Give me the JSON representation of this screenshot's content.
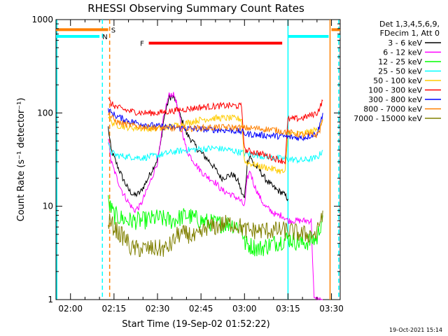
{
  "chart_data": {
    "type": "line",
    "title": "RHESSI Observing Summary Count Rates",
    "xlabel": "Start Time (19-Sep-02 01:52:22)",
    "ylabel": "Count Rate (s⁻¹ detector⁻¹)",
    "y_scale": "log",
    "ylim": [
      1,
      1000
    ],
    "xlim_minutes": [
      115,
      213
    ],
    "x_ticks": [
      {
        "label": "02:00",
        "value": 120
      },
      {
        "label": "02:15",
        "value": 135
      },
      {
        "label": "02:30",
        "value": 150
      },
      {
        "label": "02:45",
        "value": 165
      },
      {
        "label": "03:00",
        "value": 180
      },
      {
        "label": "03:15",
        "value": 195
      },
      {
        "label": "03:30",
        "value": 210
      }
    ],
    "y_ticks": [
      {
        "label": "1",
        "value": 1
      },
      {
        "label": "10",
        "value": 10
      },
      {
        "label": "100",
        "value": 100
      },
      {
        "label": "1000",
        "value": 1000
      }
    ],
    "legend": {
      "position": "right",
      "header_lines": [
        "Det 1,3,4,5,6,9,",
        "FDecim 1, Att 0"
      ]
    },
    "series": [
      {
        "name": "3 - 6 keV",
        "color": "#000000",
        "x": [
          133,
          134,
          136,
          138,
          140,
          142,
          144,
          146,
          148,
          150,
          151,
          152,
          153,
          154,
          155,
          156,
          157,
          158,
          159,
          160,
          162,
          164,
          166,
          168,
          170,
          172,
          174,
          176,
          178,
          179,
          180,
          181,
          182,
          183,
          185,
          187,
          189,
          191,
          193,
          194,
          195
        ],
        "y": [
          70,
          40,
          28,
          20,
          15,
          13,
          14,
          18,
          24,
          32,
          45,
          80,
          110,
          145,
          150,
          140,
          110,
          90,
          75,
          60,
          50,
          40,
          35,
          30,
          25,
          20,
          21,
          22,
          18,
          14,
          12,
          30,
          35,
          28,
          25,
          20,
          17,
          15,
          14,
          13,
          12
        ]
      },
      {
        "name": "6 - 12 keV",
        "color": "#ff00ff",
        "x": [
          133,
          134,
          136,
          138,
          140,
          142,
          144,
          146,
          148,
          150,
          151,
          152,
          153,
          154,
          155,
          156,
          157,
          158,
          159,
          160,
          162,
          164,
          166,
          168,
          170,
          172,
          174,
          176,
          178,
          179,
          180,
          181,
          182,
          183,
          185,
          187,
          189,
          191,
          193,
          195,
          197,
          199,
          201,
          203,
          204,
          206,
          207
        ],
        "y": [
          55,
          30,
          20,
          14,
          11,
          9,
          10,
          14,
          20,
          30,
          45,
          85,
          120,
          155,
          160,
          150,
          110,
          80,
          55,
          40,
          32,
          26,
          22,
          20,
          18,
          15,
          14,
          13,
          12,
          11,
          10,
          20,
          24,
          18,
          13,
          10,
          9,
          8,
          8,
          7,
          7,
          7,
          7,
          7,
          1,
          1,
          1
        ]
      },
      {
        "name": "12 - 25 keV",
        "color": "#00ff00",
        "x": [
          133,
          135,
          140,
          145,
          150,
          155,
          160,
          165,
          170,
          175,
          179,
          180,
          185,
          190,
          195,
          200,
          205,
          206,
          207
        ],
        "y": [
          11,
          8,
          7,
          7,
          7.5,
          7,
          8,
          7,
          6.5,
          6.5,
          6,
          4,
          3.5,
          4,
          4.5,
          4,
          4.5,
          6,
          8
        ]
      },
      {
        "name": "25 - 50 keV",
        "color": "#00ffff",
        "x": [
          133,
          134,
          136,
          140,
          145,
          150,
          155,
          160,
          165,
          170,
          175,
          180,
          185,
          190,
          195,
          200,
          205,
          206,
          207
        ],
        "y": [
          45,
          38,
          35,
          34,
          33,
          35,
          38,
          40,
          41,
          42,
          40,
          37,
          35,
          33,
          32,
          31,
          33,
          36,
          40
        ]
      },
      {
        "name": "50 - 100 keV",
        "color": "#ffcc00",
        "x": [
          133,
          134,
          136,
          140,
          145,
          150,
          155,
          160,
          165,
          170,
          175,
          179,
          180,
          185,
          190,
          194,
          195,
          200,
          205,
          206,
          207
        ],
        "y": [
          95,
          80,
          74,
          70,
          68,
          68,
          72,
          78,
          85,
          88,
          88,
          86,
          30,
          27,
          25,
          23,
          60,
          60,
          66,
          75,
          85
        ]
      },
      {
        "name": "100 - 300 keV",
        "color": "#ff0000",
        "x": [
          133,
          134,
          136,
          140,
          145,
          150,
          155,
          160,
          165,
          170,
          175,
          179,
          180,
          185,
          190,
          194,
          195,
          200,
          205,
          206,
          207
        ],
        "y": [
          140,
          125,
          115,
          105,
          100,
          100,
          105,
          110,
          115,
          118,
          120,
          118,
          40,
          37,
          33,
          30,
          85,
          88,
          100,
          115,
          135
        ]
      },
      {
        "name": "300 - 800 keV",
        "color": "#0000ff",
        "x": [
          133,
          134,
          136,
          140,
          145,
          150,
          155,
          160,
          165,
          170,
          175,
          179,
          180,
          185,
          190,
          194,
          195,
          200,
          205,
          206,
          207
        ],
        "y": [
          110,
          100,
          92,
          82,
          76,
          72,
          70,
          68,
          67,
          66,
          65,
          63,
          60,
          58,
          57,
          56,
          55,
          54,
          60,
          75,
          100
        ]
      },
      {
        "name": "800 - 7000 keV",
        "color": "#ff8000",
        "x": [
          133,
          134,
          136,
          140,
          145,
          150,
          155,
          160,
          165,
          170,
          175,
          180,
          185,
          190,
          195,
          200,
          205,
          206,
          207
        ],
        "y": [
          100,
          90,
          80,
          74,
          71,
          69,
          68,
          68,
          69,
          70,
          70,
          69,
          68,
          66,
          62,
          58,
          58,
          66,
          85
        ]
      },
      {
        "name": "7000 - 15000 keV",
        "color": "#808000",
        "x": [
          133,
          135,
          137,
          139,
          141,
          143,
          145,
          147,
          149,
          151,
          153,
          155,
          157,
          159,
          161,
          163,
          165,
          167,
          170,
          173,
          176,
          179,
          180,
          185,
          190,
          195,
          200,
          205,
          206,
          207
        ],
        "y": [
          7,
          6,
          5,
          4.5,
          3.5,
          3.5,
          3.5,
          3.5,
          3.5,
          3.5,
          3.5,
          4,
          5,
          5,
          5,
          4.5,
          5,
          6,
          6,
          6.5,
          6.5,
          6,
          5.5,
          5.5,
          5.5,
          5.5,
          5,
          5,
          7,
          9
        ]
      }
    ],
    "flags": [
      {
        "label": "S",
        "color": "#ff8000",
        "x_start": 115,
        "x_end": 133,
        "y": 780,
        "label_x": 134
      },
      {
        "label": "S",
        "color": "#ff8000",
        "x_start": 210,
        "x_end": 213,
        "y": 780
      },
      {
        "label": "N",
        "color": "#00ffff",
        "x_start": 115,
        "x_end": 130,
        "y": 660,
        "label_x": 131
      },
      {
        "label": "N",
        "color": "#00ffff",
        "x_start": 195,
        "x_end": 209,
        "y": 660
      },
      {
        "label": "N",
        "color": "#00ffff",
        "x_start": 212,
        "x_end": 213,
        "y": 660
      },
      {
        "label": "F",
        "color": "#ff0000",
        "x_start": 147,
        "x_end": 193,
        "y": 560,
        "label_x": 144
      }
    ],
    "vertical_markers": [
      {
        "x": 115.3,
        "color": "#00ffff",
        "style": "solid"
      },
      {
        "x": 131,
        "color": "#00ffff",
        "style": "dashed"
      },
      {
        "x": 133.5,
        "color": "#ff8000",
        "style": "dashed"
      },
      {
        "x": 195,
        "color": "#00ffff",
        "style": "solid"
      },
      {
        "x": 209.5,
        "color": "#ff8000",
        "style": "solid"
      },
      {
        "x": 212.5,
        "color": "#00ffff",
        "style": "dashed"
      }
    ],
    "timestamp": "19-Oct-2021 15:14"
  }
}
